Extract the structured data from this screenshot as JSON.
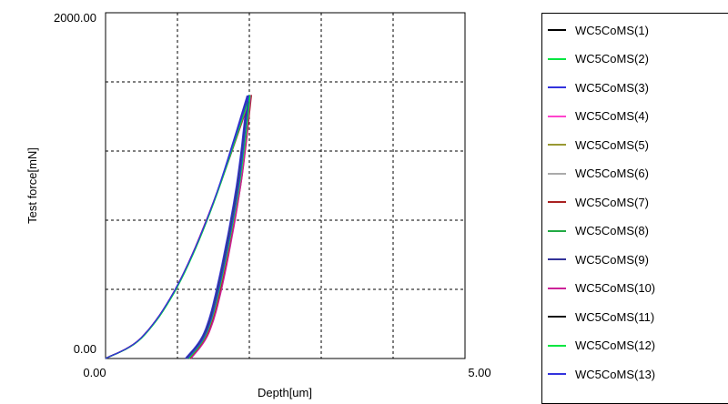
{
  "chart_data": {
    "type": "line",
    "xlabel": "Depth[um]",
    "ylabel": "Test force[mN]",
    "xlim": [
      0,
      5
    ],
    "ylim": [
      0,
      2000
    ],
    "x_tick_labels": [
      "0.00",
      "5.00"
    ],
    "y_tick_labels": [
      "0.00",
      "2000.00"
    ],
    "grid": true,
    "legend_position": "right",
    "series": [
      {
        "name": "WC5CoMS(1)",
        "color": "#000000",
        "loading": [
          [
            0,
            0
          ],
          [
            0.5,
            120
          ],
          [
            1.0,
            420
          ],
          [
            1.5,
            900
          ],
          [
            2.0,
            1520
          ]
        ],
        "unloading": [
          [
            2.0,
            1520
          ],
          [
            1.85,
            1000
          ],
          [
            1.6,
            450
          ],
          [
            1.4,
            150
          ],
          [
            1.15,
            0
          ]
        ]
      },
      {
        "name": "WC5CoMS(2)",
        "color": "#00e640",
        "loading": [
          [
            0,
            0
          ],
          [
            0.5,
            118
          ],
          [
            1.0,
            415
          ],
          [
            1.5,
            895
          ],
          [
            2.0,
            1525
          ]
        ],
        "unloading": [
          [
            2.0,
            1525
          ],
          [
            1.84,
            1000
          ],
          [
            1.58,
            450
          ],
          [
            1.38,
            150
          ],
          [
            1.12,
            0
          ]
        ]
      },
      {
        "name": "WC5CoMS(3)",
        "color": "#3333dd",
        "loading": [
          [
            0,
            0
          ],
          [
            0.5,
            122
          ],
          [
            1.0,
            425
          ],
          [
            1.5,
            905
          ],
          [
            1.97,
            1520
          ]
        ],
        "unloading": [
          [
            1.97,
            1520
          ],
          [
            1.82,
            1000
          ],
          [
            1.57,
            450
          ],
          [
            1.37,
            150
          ],
          [
            1.11,
            0
          ]
        ]
      },
      {
        "name": "WC5CoMS(4)",
        "color": "#ff44cc",
        "loading": [
          [
            0,
            0
          ],
          [
            0.5,
            119
          ],
          [
            1.0,
            418
          ],
          [
            1.5,
            898
          ],
          [
            2.02,
            1520
          ]
        ],
        "unloading": [
          [
            2.02,
            1520
          ],
          [
            1.87,
            1000
          ],
          [
            1.62,
            450
          ],
          [
            1.42,
            150
          ],
          [
            1.17,
            0
          ]
        ]
      },
      {
        "name": "WC5CoMS(5)",
        "color": "#999933",
        "loading": [
          [
            0,
            0
          ],
          [
            0.5,
            121
          ],
          [
            1.0,
            421
          ],
          [
            1.5,
            902
          ],
          [
            2.0,
            1518
          ]
        ],
        "unloading": [
          [
            2.0,
            1518
          ],
          [
            1.86,
            1000
          ],
          [
            1.61,
            450
          ],
          [
            1.41,
            150
          ],
          [
            1.16,
            0
          ]
        ]
      },
      {
        "name": "WC5CoMS(6)",
        "color": "#aaaaaa",
        "loading": [
          [
            0,
            0
          ],
          [
            0.5,
            120
          ],
          [
            1.0,
            419
          ],
          [
            1.5,
            901
          ],
          [
            2.01,
            1522
          ]
        ],
        "unloading": [
          [
            2.01,
            1522
          ],
          [
            1.86,
            1000
          ],
          [
            1.6,
            450
          ],
          [
            1.4,
            150
          ],
          [
            1.14,
            0
          ]
        ]
      },
      {
        "name": "WC5CoMS(7)",
        "color": "#aa2222",
        "loading": [
          [
            0,
            0
          ],
          [
            0.5,
            121
          ],
          [
            1.0,
            422
          ],
          [
            1.5,
            903
          ],
          [
            2.03,
            1524
          ]
        ],
        "unloading": [
          [
            2.03,
            1524
          ],
          [
            1.88,
            1000
          ],
          [
            1.63,
            450
          ],
          [
            1.43,
            150
          ],
          [
            1.18,
            0
          ]
        ]
      },
      {
        "name": "WC5CoMS(8)",
        "color": "#22aa44",
        "loading": [
          [
            0,
            0
          ],
          [
            0.5,
            119
          ],
          [
            1.0,
            417
          ],
          [
            1.5,
            897
          ],
          [
            1.99,
            1519
          ]
        ],
        "unloading": [
          [
            1.99,
            1519
          ],
          [
            1.84,
            1000
          ],
          [
            1.59,
            450
          ],
          [
            1.39,
            150
          ],
          [
            1.13,
            0
          ]
        ]
      },
      {
        "name": "WC5CoMS(9)",
        "color": "#333399",
        "loading": [
          [
            0,
            0
          ],
          [
            0.5,
            120
          ],
          [
            1.0,
            420
          ],
          [
            1.5,
            900
          ],
          [
            1.98,
            1521
          ]
        ],
        "unloading": [
          [
            1.98,
            1521
          ],
          [
            1.83,
            1000
          ],
          [
            1.58,
            450
          ],
          [
            1.38,
            150
          ],
          [
            1.12,
            0
          ]
        ]
      },
      {
        "name": "WC5CoMS(10)",
        "color": "#cc2299",
        "loading": [
          [
            0,
            0
          ],
          [
            0.5,
            122
          ],
          [
            1.0,
            424
          ],
          [
            1.5,
            906
          ],
          [
            2.02,
            1523
          ]
        ],
        "unloading": [
          [
            2.02,
            1523
          ],
          [
            1.88,
            1000
          ],
          [
            1.64,
            450
          ],
          [
            1.44,
            150
          ],
          [
            1.19,
            0
          ]
        ]
      },
      {
        "name": "WC5CoMS(11)",
        "color": "#111111",
        "loading": [
          [
            0,
            0
          ],
          [
            0.5,
            120
          ],
          [
            1.0,
            420
          ],
          [
            1.5,
            899
          ],
          [
            2.0,
            1520
          ]
        ],
        "unloading": [
          [
            2.0,
            1520
          ],
          [
            1.85,
            1000
          ],
          [
            1.6,
            450
          ],
          [
            1.4,
            150
          ],
          [
            1.15,
            0
          ]
        ]
      },
      {
        "name": "WC5CoMS(12)",
        "color": "#00e640",
        "loading": [
          [
            0,
            0
          ],
          [
            0.5,
            118
          ],
          [
            1.0,
            416
          ],
          [
            1.5,
            896
          ],
          [
            2.01,
            1521
          ]
        ],
        "unloading": [
          [
            2.01,
            1521
          ],
          [
            1.86,
            1000
          ],
          [
            1.61,
            450
          ],
          [
            1.41,
            150
          ],
          [
            1.16,
            0
          ]
        ]
      },
      {
        "name": "WC5CoMS(13)",
        "color": "#3333dd",
        "loading": [
          [
            0,
            0
          ],
          [
            0.5,
            121
          ],
          [
            1.0,
            423
          ],
          [
            1.5,
            904
          ],
          [
            1.99,
            1522
          ]
        ],
        "unloading": [
          [
            1.99,
            1522
          ],
          [
            1.85,
            1000
          ],
          [
            1.6,
            450
          ],
          [
            1.4,
            150
          ],
          [
            1.14,
            0
          ]
        ]
      }
    ]
  }
}
